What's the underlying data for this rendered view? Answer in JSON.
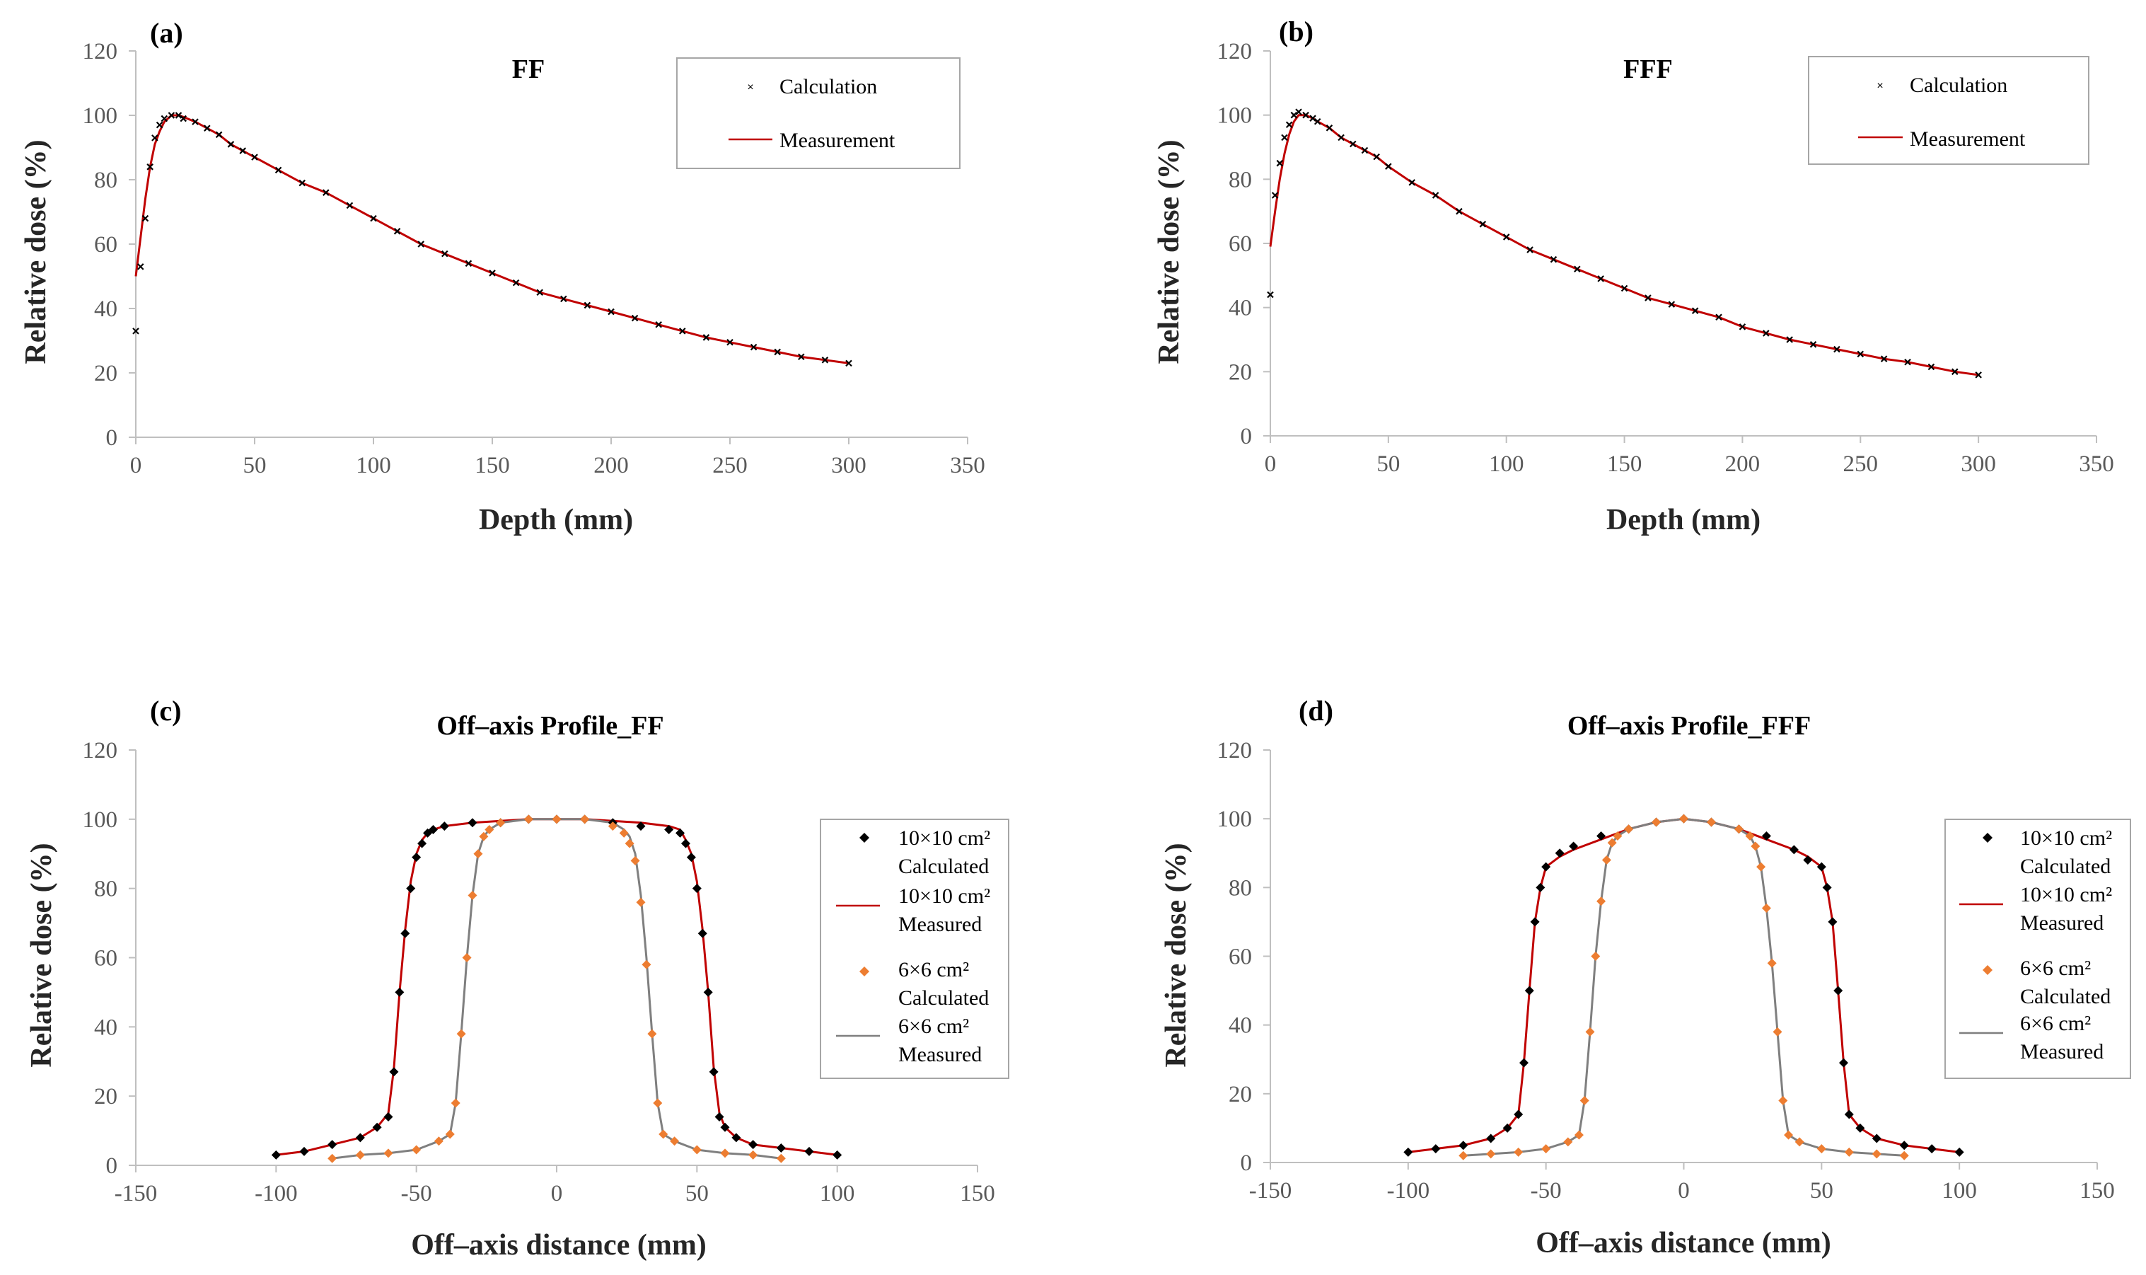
{
  "chart_data": [
    {
      "panel": "(a)",
      "type": "line",
      "title": "FF",
      "xlabel": "Depth (mm)",
      "ylabel": "Relative dose (%)",
      "xlim": [
        0,
        350
      ],
      "ylim": [
        0,
        120
      ],
      "xticks": [
        0,
        50,
        100,
        150,
        200,
        250,
        300,
        350
      ],
      "yticks": [
        0,
        20,
        40,
        60,
        80,
        100,
        120
      ],
      "legend_position": "top-right",
      "series": [
        {
          "name": "Calculation",
          "kind": "scatter",
          "marker": "x",
          "color": "#000000",
          "x": [
            0,
            2,
            4,
            6,
            8,
            10,
            12,
            15,
            18,
            20,
            25,
            30,
            35,
            40,
            45,
            50,
            60,
            70,
            80,
            90,
            100,
            110,
            120,
            130,
            140,
            150,
            160,
            170,
            180,
            190,
            200,
            210,
            220,
            230,
            240,
            250,
            260,
            270,
            280,
            290,
            300
          ],
          "y": [
            33,
            53,
            68,
            84,
            93,
            97,
            99,
            100,
            100,
            99,
            98,
            96,
            94,
            91,
            89,
            87,
            83,
            79,
            76,
            72,
            68,
            64,
            60,
            57,
            54,
            51,
            48,
            45,
            43,
            41,
            39,
            37,
            35,
            33,
            31,
            29.5,
            28,
            26.5,
            25,
            24,
            23
          ]
        },
        {
          "name": "Measurement",
          "kind": "line",
          "color": "#c00000",
          "x": [
            0,
            2,
            4,
            6,
            8,
            10,
            12,
            15,
            18,
            20,
            25,
            30,
            35,
            40,
            45,
            50,
            60,
            70,
            80,
            90,
            100,
            110,
            120,
            130,
            140,
            150,
            160,
            170,
            180,
            190,
            200,
            210,
            220,
            230,
            240,
            250,
            260,
            270,
            280,
            290,
            300
          ],
          "y": [
            50,
            62,
            74,
            84,
            91,
            95,
            98,
            100,
            100,
            99.5,
            98,
            96,
            94,
            91,
            89,
            87,
            83,
            79,
            76,
            72,
            68,
            64,
            60,
            57,
            54,
            51,
            48,
            45,
            43,
            41,
            39,
            37,
            35,
            33,
            31,
            29.5,
            28,
            26.5,
            25,
            24,
            23
          ]
        }
      ]
    },
    {
      "panel": "(b)",
      "type": "line",
      "title": "FFF",
      "xlabel": "Depth (mm)",
      "ylabel": "Relative dose (%)",
      "xlim": [
        0,
        350
      ],
      "ylim": [
        0,
        120
      ],
      "xticks": [
        0,
        50,
        100,
        150,
        200,
        250,
        300,
        350
      ],
      "yticks": [
        0,
        20,
        40,
        60,
        80,
        100,
        120
      ],
      "legend_position": "top-right",
      "series": [
        {
          "name": "Calculation",
          "kind": "scatter",
          "marker": "x",
          "color": "#000000",
          "x": [
            0,
            2,
            4,
            6,
            8,
            10,
            12,
            15,
            18,
            20,
            25,
            30,
            35,
            40,
            45,
            50,
            60,
            70,
            80,
            90,
            100,
            110,
            120,
            130,
            140,
            150,
            160,
            170,
            180,
            190,
            200,
            210,
            220,
            230,
            240,
            250,
            260,
            270,
            280,
            290,
            300
          ],
          "y": [
            44,
            75,
            85,
            93,
            97,
            100,
            101,
            100,
            99,
            98,
            96,
            93,
            91,
            89,
            87,
            84,
            79,
            75,
            70,
            66,
            62,
            58,
            55,
            52,
            49,
            46,
            43,
            41,
            39,
            37,
            34,
            32,
            30,
            28.5,
            27,
            25.5,
            24,
            23,
            21.5,
            20,
            19
          ]
        },
        {
          "name": "Measurement",
          "kind": "line",
          "color": "#c00000",
          "x": [
            0,
            2,
            4,
            6,
            8,
            10,
            12,
            15,
            18,
            20,
            25,
            30,
            35,
            40,
            45,
            50,
            60,
            70,
            80,
            90,
            100,
            110,
            120,
            130,
            140,
            150,
            160,
            170,
            180,
            190,
            200,
            210,
            220,
            230,
            240,
            250,
            260,
            270,
            280,
            290,
            300
          ],
          "y": [
            59,
            70,
            80,
            88,
            94,
            98,
            100,
            100,
            99,
            98,
            96,
            93,
            91,
            89,
            87,
            84,
            79,
            75,
            70,
            66,
            62,
            58,
            55,
            52,
            49,
            46,
            43,
            41,
            39,
            37,
            34,
            32,
            30,
            28.5,
            27,
            25.5,
            24,
            23,
            21.5,
            20,
            19
          ]
        }
      ]
    },
    {
      "panel": "(c)",
      "type": "line",
      "title": "Off–axis Profile_FF",
      "xlabel": "Off–axis distance (mm)",
      "ylabel": "Relative dose (%)",
      "xlim": [
        -150,
        150
      ],
      "ylim": [
        0,
        120
      ],
      "xticks": [
        -150,
        -100,
        -50,
        0,
        50,
        100,
        150
      ],
      "yticks": [
        0,
        20,
        40,
        60,
        80,
        100,
        120
      ],
      "legend_position": "right",
      "series": [
        {
          "name": "10×10 cm² Calculated",
          "legend_lines": [
            "10×10 cm²",
            "Calculated"
          ],
          "kind": "scatter",
          "marker": "diamond",
          "color": "#000000",
          "x": [
            -100,
            -90,
            -80,
            -70,
            -64,
            -60,
            -58,
            -56,
            -54,
            -52,
            -50,
            -48,
            -46,
            -44,
            -40,
            -30,
            -20,
            -10,
            0,
            10,
            20,
            30,
            40,
            44,
            46,
            48,
            50,
            52,
            54,
            56,
            58,
            60,
            64,
            70,
            80,
            90,
            100
          ],
          "y": [
            3,
            4,
            6,
            8,
            11,
            14,
            27,
            50,
            67,
            80,
            89,
            93,
            96,
            97,
            98,
            99,
            99,
            100,
            100,
            100,
            99,
            98,
            97,
            96,
            93,
            89,
            80,
            67,
            50,
            27,
            14,
            11,
            8,
            6,
            5,
            4,
            3
          ]
        },
        {
          "name": "10×10 cm² Measured",
          "legend_lines": [
            "10×10 cm²",
            "Measured"
          ],
          "kind": "line",
          "color": "#c00000",
          "x": [
            -100,
            -90,
            -80,
            -70,
            -64,
            -60,
            -58,
            -56,
            -54,
            -52,
            -50,
            -48,
            -46,
            -44,
            -40,
            -30,
            -20,
            -10,
            0,
            10,
            20,
            30,
            40,
            44,
            46,
            48,
            50,
            52,
            54,
            56,
            58,
            60,
            64,
            70,
            80,
            90,
            100
          ],
          "y": [
            3,
            4,
            6,
            8,
            11,
            15,
            28,
            50,
            68,
            82,
            90,
            94,
            96,
            97,
            98,
            99,
            99.5,
            100,
            100,
            100,
            99.5,
            99,
            98,
            97,
            94,
            90,
            82,
            68,
            50,
            28,
            15,
            11,
            8,
            6,
            5,
            4,
            3
          ]
        },
        {
          "name": "6×6 cm² Calculated",
          "legend_lines": [
            "6×6 cm²",
            "Calculated"
          ],
          "kind": "scatter",
          "marker": "diamond",
          "color": "#ed7d31",
          "x": [
            -80,
            -70,
            -60,
            -50,
            -42,
            -38,
            -36,
            -34,
            -32,
            -30,
            -28,
            -26,
            -24,
            -20,
            -10,
            0,
            10,
            20,
            24,
            26,
            28,
            30,
            32,
            34,
            36,
            38,
            42,
            50,
            60,
            70,
            80
          ],
          "y": [
            2,
            3,
            3.5,
            4.5,
            7,
            9,
            18,
            38,
            60,
            78,
            90,
            95,
            97,
            99,
            100,
            100,
            100,
            98,
            96,
            93,
            88,
            76,
            58,
            38,
            18,
            9,
            7,
            4.5,
            3.5,
            3,
            2
          ]
        },
        {
          "name": "6×6 cm² Measured",
          "legend_lines": [
            "6×6 cm²",
            "Measured"
          ],
          "kind": "line",
          "color": "#7f7f7f",
          "x": [
            -80,
            -70,
            -60,
            -50,
            -42,
            -38,
            -36,
            -34,
            -32,
            -30,
            -28,
            -26,
            -24,
            -20,
            -10,
            0,
            10,
            20,
            24,
            26,
            28,
            30,
            32,
            34,
            36,
            38,
            42,
            50,
            60,
            70,
            80
          ],
          "y": [
            2,
            3,
            3.5,
            4.5,
            7,
            9,
            18,
            38,
            60,
            78,
            90,
            95,
            97,
            99,
            100,
            100,
            100,
            99,
            97,
            95,
            90,
            78,
            60,
            38,
            18,
            9,
            7,
            4.5,
            3.5,
            3,
            2
          ]
        }
      ]
    },
    {
      "panel": "(d)",
      "type": "line",
      "title": "Off–axis Profile_FFF",
      "xlabel": "Off–axis distance (mm)",
      "ylabel": "Relative dose (%)",
      "xlim": [
        -150,
        150
      ],
      "ylim": [
        0,
        120
      ],
      "xticks": [
        -150,
        -100,
        -50,
        0,
        50,
        100,
        150
      ],
      "yticks": [
        0,
        20,
        40,
        60,
        80,
        100,
        120
      ],
      "legend_position": "right",
      "series": [
        {
          "name": "10×10 cm² Calculated",
          "legend_lines": [
            "10×10 cm²",
            "Calculated"
          ],
          "kind": "scatter",
          "marker": "diamond",
          "color": "#000000",
          "x": [
            -100,
            -90,
            -80,
            -70,
            -64,
            -60,
            -58,
            -56,
            -54,
            -52,
            -50,
            -45,
            -40,
            -30,
            -20,
            -10,
            0,
            10,
            20,
            30,
            40,
            45,
            50,
            52,
            54,
            56,
            58,
            60,
            64,
            70,
            80,
            90,
            100
          ],
          "y": [
            3,
            4,
            5,
            7,
            10,
            14,
            29,
            50,
            70,
            80,
            86,
            90,
            92,
            95,
            97,
            99,
            100,
            99,
            97,
            95,
            91,
            88,
            86,
            80,
            70,
            50,
            29,
            14,
            10,
            7,
            5,
            4,
            3
          ]
        },
        {
          "name": "10×10 cm² Measured",
          "legend_lines": [
            "10×10 cm²",
            "Measured"
          ],
          "kind": "line",
          "color": "#c00000",
          "x": [
            -100,
            -90,
            -80,
            -70,
            -64,
            -60,
            -58,
            -56,
            -54,
            -52,
            -50,
            -45,
            -40,
            -30,
            -20,
            -10,
            0,
            10,
            20,
            30,
            40,
            45,
            50,
            52,
            54,
            56,
            58,
            60,
            64,
            70,
            80,
            90,
            100
          ],
          "y": [
            3,
            4,
            5,
            7,
            10,
            14,
            29,
            50,
            70,
            80,
            86,
            89,
            91,
            94,
            97,
            99,
            100,
            99,
            97,
            94,
            91,
            89,
            86,
            80,
            70,
            50,
            29,
            14,
            10,
            7,
            5,
            4,
            3
          ]
        },
        {
          "name": "6×6 cm² Calculated",
          "legend_lines": [
            "6×6 cm²",
            "Calculated"
          ],
          "kind": "scatter",
          "marker": "diamond",
          "color": "#ed7d31",
          "x": [
            -80,
            -70,
            -60,
            -50,
            -42,
            -38,
            -36,
            -34,
            -32,
            -30,
            -28,
            -26,
            -24,
            -20,
            -10,
            0,
            10,
            20,
            24,
            26,
            28,
            30,
            32,
            34,
            36,
            38,
            42,
            50,
            60,
            70,
            80
          ],
          "y": [
            2,
            2.5,
            3,
            4,
            6,
            8,
            18,
            38,
            60,
            76,
            88,
            93,
            95,
            97,
            99,
            100,
            99,
            97,
            95,
            92,
            86,
            74,
            58,
            38,
            18,
            8,
            6,
            4,
            3,
            2.5,
            2
          ]
        },
        {
          "name": "6×6 cm² Measured",
          "legend_lines": [
            "6×6 cm²",
            "Measured"
          ],
          "kind": "line",
          "color": "#7f7f7f",
          "x": [
            -80,
            -70,
            -60,
            -50,
            -42,
            -38,
            -36,
            -34,
            -32,
            -30,
            -28,
            -26,
            -24,
            -20,
            -10,
            0,
            10,
            20,
            24,
            26,
            28,
            30,
            32,
            34,
            36,
            38,
            42,
            50,
            60,
            70,
            80
          ],
          "y": [
            2,
            2.5,
            3,
            4,
            6,
            8,
            18,
            38,
            60,
            76,
            88,
            93,
            95,
            97,
            99,
            100,
            99,
            97,
            95,
            92,
            86,
            74,
            58,
            38,
            18,
            8,
            6,
            4,
            3,
            2.5,
            2
          ]
        }
      ]
    }
  ]
}
